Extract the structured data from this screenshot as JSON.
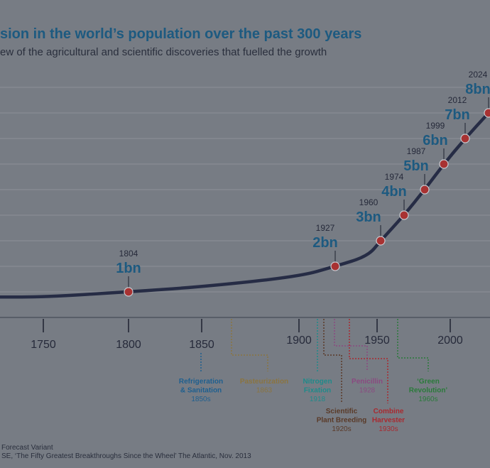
{
  "title": "sion in the world’s population over the past 300 years",
  "subtitle": "ew of the agricultural and scientific discoveries that fuelled the growth",
  "footnotes": [
    "Forecast Variant",
    "SE, ‘The Fifty Greatest Breakthroughs Since the Wheel’ The Atlantic, Nov. 2013"
  ],
  "colors": {
    "title": "#1d5a80",
    "curve": "#262c45",
    "marker": "#a83232",
    "grid": "#8c9097",
    "background": "#777c84"
  },
  "chart_data": {
    "type": "line",
    "xlabel": "",
    "ylabel": "",
    "x_ticks": [
      1750,
      1800,
      1850,
      1900,
      1950,
      2000
    ],
    "grid": true,
    "ylim_billions": [
      0,
      9
    ],
    "curve": {
      "x": [
        1725,
        1750,
        1804,
        1850,
        1900,
        1927,
        1945,
        1960,
        1974,
        1987,
        1999,
        2012,
        2024
      ],
      "y": [
        0.8,
        0.8,
        1,
        1.2,
        1.6,
        2,
        2.4,
        3,
        4,
        5,
        6,
        7,
        8
      ]
    },
    "milestones": [
      {
        "year": "1804",
        "label": "1bn",
        "x": 1804,
        "y": 1
      },
      {
        "year": "1927",
        "label": "2bn",
        "x": 1927,
        "y": 2
      },
      {
        "year": "1960",
        "label": "3bn",
        "x": 1960,
        "y": 3
      },
      {
        "year": "1974",
        "label": "4bn",
        "x": 1974,
        "y": 4
      },
      {
        "year": "1987",
        "label": "5bn",
        "x": 1987,
        "y": 5
      },
      {
        "year": "1999",
        "label": "6bn",
        "x": 1999,
        "y": 6
      },
      {
        "year": "2012",
        "label": "7bn",
        "x": 2012,
        "y": 7
      },
      {
        "year": "2024",
        "label": "8bn",
        "x": 2024,
        "y": 8
      }
    ],
    "annotations": [
      {
        "lines": [
          "Refrigeration",
          "& Sanitation"
        ],
        "date": "1850s",
        "color": "#1e5f8f"
      },
      {
        "lines": [
          "Pasteurization"
        ],
        "date": "1863",
        "color": "#8a7440"
      },
      {
        "lines": [
          "Nitrogen",
          "Fixation"
        ],
        "date": "1918",
        "color": "#1f8a8a"
      },
      {
        "lines": [
          "Scientific",
          "Plant Breeding"
        ],
        "date": "1920s",
        "color": "#5a3a28"
      },
      {
        "lines": [
          "Penicillin"
        ],
        "date": "1928",
        "color": "#8a4a80"
      },
      {
        "lines": [
          "Combine",
          "Harvester"
        ],
        "date": "1930s",
        "color": "#a82a30"
      },
      {
        "lines": [
          "‘Green",
          "Revolution’"
        ],
        "date": "1960s",
        "color": "#2a7a3a"
      }
    ]
  }
}
